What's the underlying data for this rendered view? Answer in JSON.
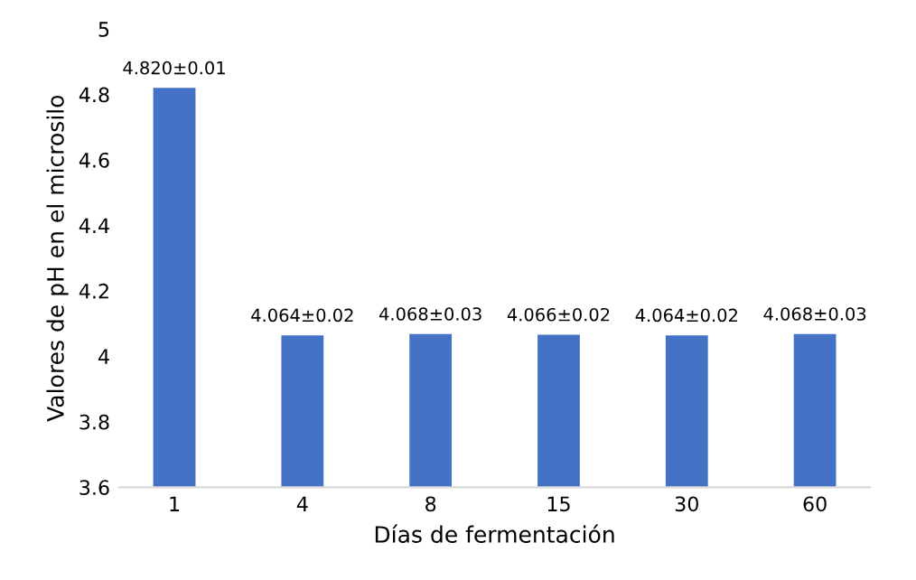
{
  "chart_data": {
    "type": "bar",
    "xlabel": "Días de fermentación",
    "ylabel": "Valores de pH en el microsilo",
    "categories": [
      "1",
      "4",
      "8",
      "15",
      "30",
      "60"
    ],
    "values": [
      4.82,
      4.064,
      4.068,
      4.066,
      4.064,
      4.068
    ],
    "value_labels": [
      "4.820±0.01",
      "4.064±0.02",
      "4.068±0.03",
      "4.066±0.02",
      "4.064±0.02",
      "4.068±0.03"
    ],
    "color": "#4472c4",
    "ylim": [
      3.6,
      5
    ],
    "yticks": [
      3.6,
      3.8,
      4,
      4.2,
      4.4,
      4.6,
      4.8,
      5
    ],
    "grid": false,
    "legend": false
  }
}
